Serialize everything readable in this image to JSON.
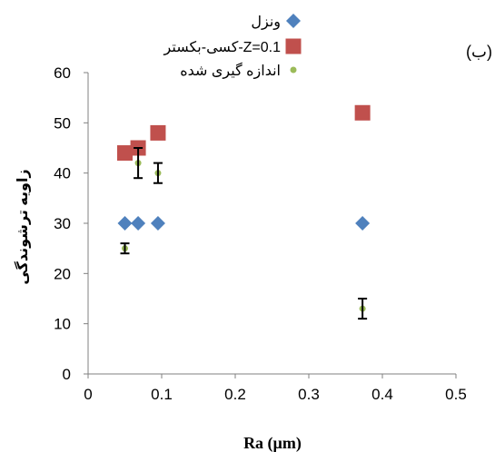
{
  "panel_label": "(ب)",
  "chart_data": {
    "type": "scatter",
    "xlabel": "Ra (µm)",
    "ylabel": "زاویه ترشوندگی",
    "xlim": [
      0,
      0.5
    ],
    "ylim": [
      0,
      60
    ],
    "xticks": [
      0,
      0.1,
      0.2,
      0.3,
      0.4,
      0.5
    ],
    "xtick_labels": [
      "0",
      "0.1",
      "0.2",
      "0.3",
      "0.4",
      "0.5"
    ],
    "yticks": [
      0,
      10,
      20,
      30,
      40,
      50,
      60
    ],
    "ytick_labels": [
      "0",
      "10",
      "20",
      "30",
      "40",
      "50",
      "60"
    ],
    "grid": false,
    "legend_position": "top-left",
    "series": [
      {
        "name": "ونزل",
        "marker": "diamond",
        "color": "#4f81bd",
        "x": [
          0.05,
          0.068,
          0.095,
          0.373
        ],
        "y": [
          30,
          30,
          30,
          30
        ]
      },
      {
        "name": "کسی-بکستر-Z=0.1",
        "marker": "square",
        "color": "#c0504d",
        "x": [
          0.05,
          0.068,
          0.095,
          0.373
        ],
        "y": [
          44,
          45,
          48,
          52
        ]
      },
      {
        "name": "اندازه گیری شده",
        "marker": "circle",
        "color": "#9bbb59",
        "x": [
          0.05,
          0.068,
          0.095,
          0.373
        ],
        "y": [
          25,
          42,
          40,
          13
        ],
        "error": [
          1,
          3,
          2,
          2
        ]
      }
    ]
  }
}
